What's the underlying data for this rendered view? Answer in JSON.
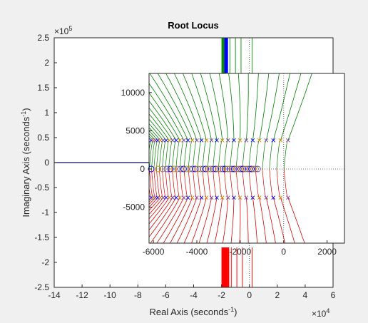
{
  "chart_data": [
    {
      "type": "line",
      "title": "Root Locus",
      "xlabel": {
        "text": "Real Axis (seconds",
        "sup": "-1",
        "end": ")"
      },
      "ylabel": {
        "text": "Imaginary Axis (seconds",
        "sup": "-1",
        "end": ")"
      },
      "xlim": [
        -140000,
        60000
      ],
      "ylim": [
        -250000,
        250000
      ],
      "x_multiplier": {
        "base": "×10",
        "exp": "4"
      },
      "y_multiplier": {
        "base": "×10",
        "exp": "5"
      },
      "xticks": [
        -14,
        -12,
        -10,
        -8,
        -6,
        -4,
        -2,
        0,
        2,
        4,
        6
      ],
      "yticks": [
        2.5,
        2,
        1.5,
        1,
        0.5,
        0,
        -0.5,
        -1,
        -1.5,
        -2,
        -2.5
      ],
      "grid": false,
      "series": [
        {
          "color": "#0000ff",
          "values": [
            [
              -140000,
              0
            ],
            [
              -18000,
              0
            ]
          ]
        },
        {
          "color": "#00a000",
          "values": [
            [
              -19000,
              250000
            ],
            [
              -19000,
              180000
            ]
          ]
        },
        {
          "color": "#ff0000",
          "values": [
            [
              -19000,
              -250000
            ],
            [
              -19000,
              -180000
            ]
          ]
        }
      ]
    },
    {
      "type": "line",
      "title": "",
      "xlim": [
        -6200,
        2800
      ],
      "ylim": [
        -9700,
        12500
      ],
      "xticks": [
        -6000,
        -4000,
        -2000,
        0,
        2000
      ],
      "yticks": [
        10000,
        5000,
        0,
        -5000
      ],
      "grid": false,
      "branch_colors": {
        "upper": "#008000",
        "lower": "#e00000"
      },
      "poles": {
        "count": 30,
        "x_range": [
          -6100,
          200
        ],
        "imag": 3750
      },
      "zeros": {
        "count": 40,
        "x_range": [
          -6100,
          -1200
        ],
        "imag": 0
      },
      "zero_colors": [
        "#0000ff",
        "#e08000",
        "#808080",
        "#8040a0"
      ]
    }
  ],
  "colors": {
    "background": "#f0f0f0",
    "axes": "#ffffff",
    "box": "#262626"
  }
}
